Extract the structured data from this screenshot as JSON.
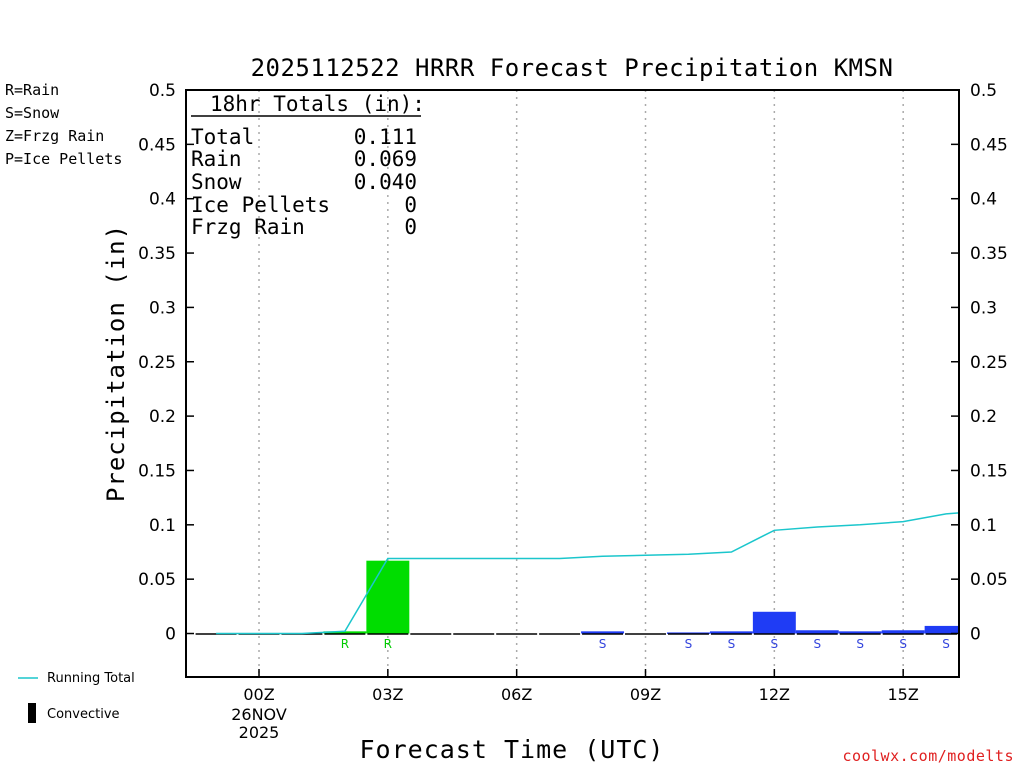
{
  "title": "2025112522 HRRR Forecast Precipitation KMSN",
  "type_legend": [
    {
      "text": "R=Rain",
      "color": "#00cc00"
    },
    {
      "text": "S=Snow",
      "color": "#3344dd"
    },
    {
      "text": "Z=Frzg Rain",
      "color": "#f08a3a"
    },
    {
      "text": "P=Ice Pellets",
      "color": "#e0208a"
    }
  ],
  "totals_box": {
    "header": "18hr Totals (in):",
    "rows": [
      {
        "label": "Total",
        "value": "0.111"
      },
      {
        "label": "Rain",
        "value": "0.069"
      },
      {
        "label": "Snow",
        "value": "0.040"
      },
      {
        "label": "Ice Pellets",
        "value": "0"
      },
      {
        "label": "Frzg Rain",
        "value": "0"
      }
    ]
  },
  "bottom_legend": {
    "running_total": "Running Total",
    "convective": "Convective"
  },
  "credit": "coolwx.com/modelts",
  "colors": {
    "rain": "#00dd00",
    "snow": "#1f3cf5",
    "running_total": "#1bc6cc",
    "convective": "#000000",
    "grid": "#aaaaaa"
  },
  "chart_data": {
    "type": "bar",
    "title": "2025112522 HRRR Forecast Precipitation KMSN",
    "xlabel": "Forecast Time (UTC)",
    "ylabel": "Precipitation (in)",
    "ylim": [
      -0.04,
      0.5
    ],
    "yticks": [
      "0",
      "0.05",
      "0.1",
      "0.15",
      "0.2",
      "0.25",
      "0.3",
      "0.35",
      "0.4",
      "0.45",
      "0.5"
    ],
    "xlim": [
      22.3,
      40.3
    ],
    "xticks": [
      {
        "x": 24,
        "label": "00Z",
        "sub": [
          "26NOV",
          "2025"
        ]
      },
      {
        "x": 27,
        "label": "03Z"
      },
      {
        "x": 30,
        "label": "06Z"
      },
      {
        "x": 33,
        "label": "09Z"
      },
      {
        "x": 36,
        "label": "12Z"
      },
      {
        "x": 39,
        "label": "15Z"
      }
    ],
    "grid": "vertical dotted",
    "bars": [
      {
        "hour": 23,
        "value": 0,
        "type": ""
      },
      {
        "hour": 24,
        "value": 0,
        "type": ""
      },
      {
        "hour": 25,
        "value": 0,
        "type": ""
      },
      {
        "hour": 26,
        "value": 0.002,
        "type": "R"
      },
      {
        "hour": 27,
        "value": 0.067,
        "type": "R"
      },
      {
        "hour": 28,
        "value": 0,
        "type": ""
      },
      {
        "hour": 29,
        "value": 0,
        "type": ""
      },
      {
        "hour": 30,
        "value": 0,
        "type": ""
      },
      {
        "hour": 31,
        "value": 0,
        "type": ""
      },
      {
        "hour": 32,
        "value": 0.002,
        "type": "S"
      },
      {
        "hour": 33,
        "value": 0,
        "type": ""
      },
      {
        "hour": 34,
        "value": 0.001,
        "type": "S"
      },
      {
        "hour": 35,
        "value": 0.002,
        "type": "S"
      },
      {
        "hour": 36,
        "value": 0.02,
        "type": "S"
      },
      {
        "hour": 37,
        "value": 0.003,
        "type": "S"
      },
      {
        "hour": 38,
        "value": 0.002,
        "type": "S"
      },
      {
        "hour": 39,
        "value": 0.003,
        "type": "S"
      },
      {
        "hour": 40,
        "value": 0.007,
        "type": "S"
      }
    ],
    "running_total": {
      "name": "Running Total",
      "points": [
        [
          23,
          0
        ],
        [
          24,
          0
        ],
        [
          25,
          0
        ],
        [
          26,
          0.002
        ],
        [
          27,
          0.069
        ],
        [
          28,
          0.069
        ],
        [
          29,
          0.069
        ],
        [
          30,
          0.069
        ],
        [
          31,
          0.069
        ],
        [
          32,
          0.071
        ],
        [
          33,
          0.072
        ],
        [
          34,
          0.073
        ],
        [
          35,
          0.075
        ],
        [
          36,
          0.095
        ],
        [
          37,
          0.098
        ],
        [
          38,
          0.1
        ],
        [
          39,
          0.103
        ],
        [
          40,
          0.11
        ],
        [
          40.3,
          0.111
        ]
      ]
    }
  }
}
